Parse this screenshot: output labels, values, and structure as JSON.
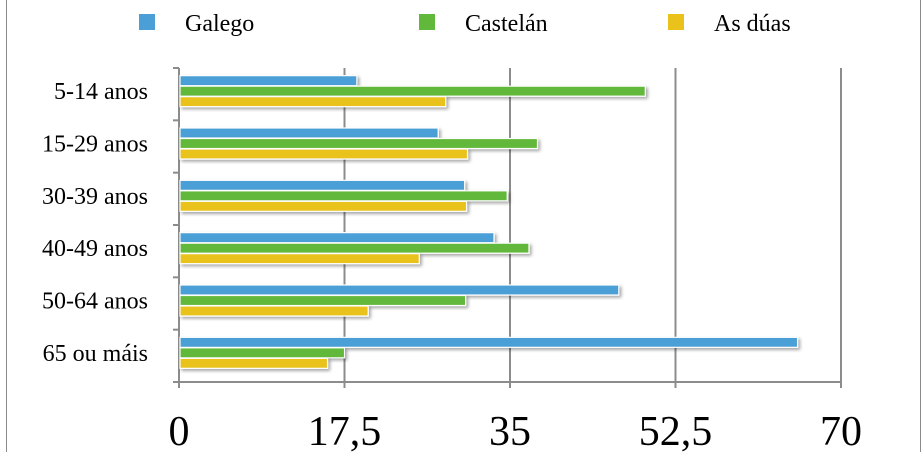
{
  "chart_data": {
    "type": "bar",
    "orientation": "horizontal",
    "categories": [
      "5-14 anos",
      "15-29 anos",
      "30-39 anos",
      "40-49 anos",
      "50-64 anos",
      "65 ou máis"
    ],
    "series": [
      {
        "name": "Galego",
        "color": "#4a9fd6",
        "values": [
          18.7,
          27.3,
          30.1,
          33.2,
          46.4,
          65.3
        ]
      },
      {
        "name": "Castelán",
        "color": "#62b83a",
        "values": [
          49.2,
          37.8,
          34.6,
          36.9,
          30.2,
          17.4
        ]
      },
      {
        "name": "As dúas",
        "color": "#e9c21c",
        "values": [
          28.1,
          30.4,
          30.3,
          25.3,
          19.9,
          15.6
        ]
      }
    ],
    "xlim": [
      0,
      70
    ],
    "x_ticks": [
      "0",
      "17,5",
      "35",
      "52,5",
      "70"
    ],
    "legend_position": "top",
    "grid": true
  }
}
